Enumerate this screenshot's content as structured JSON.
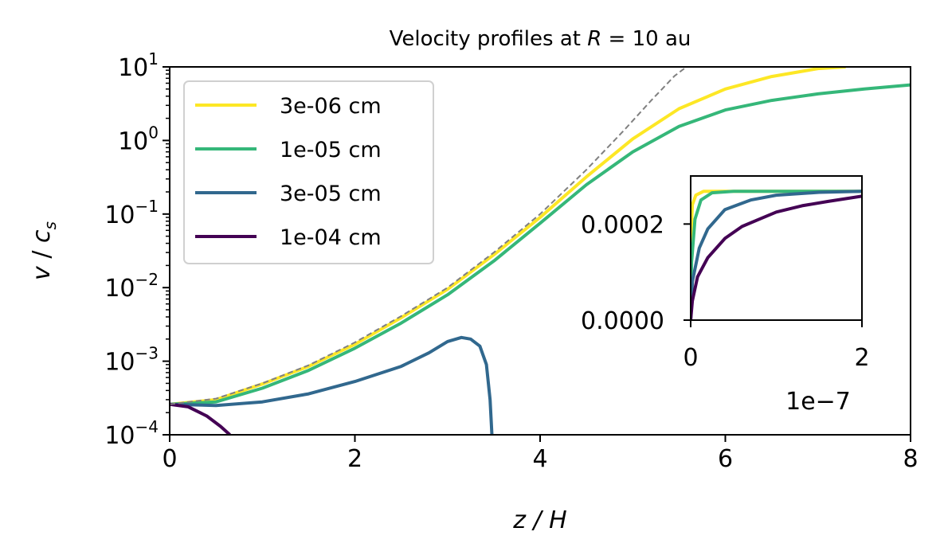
{
  "chart_data": [
    {
      "type": "line",
      "title": "Velocity profiles at R = 10 au",
      "title_parts": {
        "prefix": "Velocity profiles at ",
        "italic_var": "R",
        "suffix": " = 10 au"
      },
      "xlabel": "z / H",
      "ylabel": "v / c_s",
      "ylabel_parts": {
        "v": "v",
        "sep": " / ",
        "c": "c",
        "sub": "s"
      },
      "yscale": "log",
      "xlim": [
        0,
        8
      ],
      "ylim": [
        0.0001,
        10
      ],
      "x_ticks": [
        "0",
        "2",
        "4",
        "6",
        "8"
      ],
      "y_ticks": [
        {
          "base": "10",
          "exp": "1"
        },
        {
          "base": "10",
          "exp": "0"
        },
        {
          "base": "10",
          "exp": "−1"
        },
        {
          "base": "10",
          "exp": "−2"
        },
        {
          "base": "10",
          "exp": "−3"
        },
        {
          "base": "10",
          "exp": "−4"
        }
      ],
      "legend_position": "upper-left",
      "reference_line": {
        "style": "dashed",
        "color": "#808080",
        "points": [
          [
            0,
            0.00026
          ],
          [
            0.5,
            0.00031
          ],
          [
            1,
            0.0005
          ],
          [
            1.5,
            0.00088
          ],
          [
            2,
            0.0018
          ],
          [
            2.5,
            0.0041
          ],
          [
            3,
            0.01
          ],
          [
            3.5,
            0.03
          ],
          [
            4,
            0.1
          ],
          [
            4.5,
            0.4
          ],
          [
            4.9,
            1.35
          ],
          [
            5.2,
            3.5
          ],
          [
            5.45,
            7.5
          ],
          [
            5.58,
            10
          ]
        ]
      },
      "series": [
        {
          "name": "3e-06 cm",
          "color": "#fde725",
          "points": [
            [
              0,
              0.00026
            ],
            [
              0.5,
              0.0003
            ],
            [
              1,
              0.00049
            ],
            [
              1.5,
              0.00085
            ],
            [
              2,
              0.0017
            ],
            [
              2.5,
              0.0039
            ],
            [
              3,
              0.0095
            ],
            [
              3.5,
              0.028
            ],
            [
              4,
              0.09
            ],
            [
              4.5,
              0.32
            ],
            [
              5,
              1.05
            ],
            [
              5.5,
              2.7
            ],
            [
              6,
              5.0
            ],
            [
              6.5,
              7.4
            ],
            [
              7,
              9.5
            ],
            [
              7.3,
              10
            ]
          ]
        },
        {
          "name": "1e-05 cm",
          "color": "#35b779",
          "points": [
            [
              0,
              0.00026
            ],
            [
              0.5,
              0.00028
            ],
            [
              1,
              0.00043
            ],
            [
              1.5,
              0.00075
            ],
            [
              2,
              0.0015
            ],
            [
              2.5,
              0.0033
            ],
            [
              3,
              0.008
            ],
            [
              3.5,
              0.023
            ],
            [
              4,
              0.075
            ],
            [
              4.5,
              0.25
            ],
            [
              5,
              0.7
            ],
            [
              5.5,
              1.55
            ],
            [
              6,
              2.6
            ],
            [
              6.5,
              3.5
            ],
            [
              7,
              4.3
            ],
            [
              7.5,
              5.0
            ],
            [
              8,
              5.7
            ]
          ]
        },
        {
          "name": "3e-05 cm",
          "color": "#31688e",
          "points": [
            [
              0,
              0.00026
            ],
            [
              0.5,
              0.00025
            ],
            [
              1,
              0.00028
            ],
            [
              1.5,
              0.00036
            ],
            [
              2,
              0.00053
            ],
            [
              2.5,
              0.00085
            ],
            [
              2.8,
              0.0013
            ],
            [
              3.0,
              0.00185
            ],
            [
              3.15,
              0.0021
            ],
            [
              3.25,
              0.002
            ],
            [
              3.35,
              0.0016
            ],
            [
              3.42,
              0.0009
            ],
            [
              3.46,
              0.0003
            ],
            [
              3.48,
              0.0001
            ]
          ]
        },
        {
          "name": "1e-04 cm",
          "color": "#440154",
          "points": [
            [
              0,
              0.00026
            ],
            [
              0.2,
              0.00024
            ],
            [
              0.4,
              0.00018
            ],
            [
              0.55,
              0.00013
            ],
            [
              0.65,
              0.0001
            ]
          ]
        }
      ]
    },
    {
      "type": "line",
      "role": "inset",
      "xlim": [
        0,
        2e-07
      ],
      "ylim": [
        0,
        0.0003
      ],
      "x_ticks": [
        "0",
        "2"
      ],
      "y_ticks": [
        "0.0000",
        "0.0002"
      ],
      "x_offset_label": "1e−7",
      "series": [
        {
          "name": "3e-06 cm",
          "color": "#fde725",
          "points": [
            [
              0,
              0
            ],
            [
              5e-10,
              0.00018
            ],
            [
              2e-09,
              0.00024
            ],
            [
              6e-09,
              0.00026
            ],
            [
              1.5e-08,
              0.000268
            ],
            [
              2e-07,
              0.000268
            ]
          ]
        },
        {
          "name": "1e-05 cm",
          "color": "#35b779",
          "points": [
            [
              0,
              0
            ],
            [
              1e-09,
              0.00012
            ],
            [
              5e-09,
              0.00021
            ],
            [
              1.2e-08,
              0.00025
            ],
            [
              2.5e-08,
              0.000265
            ],
            [
              5e-08,
              0.000268
            ],
            [
              2e-07,
              0.000268
            ]
          ]
        },
        {
          "name": "3e-05 cm",
          "color": "#31688e",
          "points": [
            [
              0,
              0
            ],
            [
              2e-09,
              8e-05
            ],
            [
              1e-08,
              0.00015
            ],
            [
              2e-08,
              0.00019
            ],
            [
              4e-08,
              0.00023
            ],
            [
              7e-08,
              0.00025
            ],
            [
              1e-07,
              0.00026
            ],
            [
              1.5e-07,
              0.000266
            ],
            [
              2e-07,
              0.000268
            ]
          ]
        },
        {
          "name": "1e-04 cm",
          "color": "#440154",
          "points": [
            [
              0,
              0
            ],
            [
              2e-09,
              4e-05
            ],
            [
              8e-09,
              9e-05
            ],
            [
              2e-08,
              0.00013
            ],
            [
              4e-08,
              0.00017
            ],
            [
              6e-08,
              0.000195
            ],
            [
              8e-08,
              0.00021
            ],
            [
              1e-07,
              0.000225
            ],
            [
              1.3e-07,
              0.000238
            ],
            [
              1.6e-07,
              0.000247
            ],
            [
              2e-07,
              0.000258
            ]
          ]
        }
      ]
    }
  ]
}
